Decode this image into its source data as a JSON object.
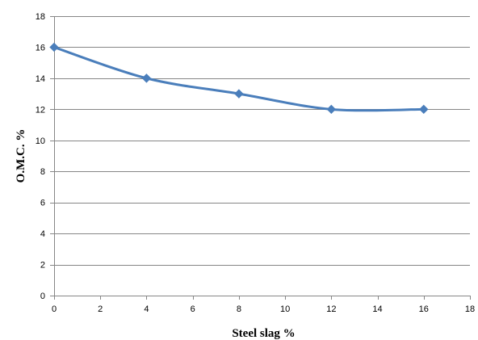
{
  "chart_data": {
    "type": "line",
    "xlabel": "Steel slag %",
    "ylabel": "O.M.C. %",
    "xlim": [
      0,
      18
    ],
    "ylim": [
      0,
      18
    ],
    "x_ticks": [
      0,
      2,
      4,
      6,
      8,
      10,
      12,
      14,
      16,
      18
    ],
    "y_ticks": [
      0,
      2,
      4,
      6,
      8,
      10,
      12,
      14,
      16,
      18
    ],
    "grid": "horizontal",
    "smooth": true,
    "series": [
      {
        "x": [
          0,
          4,
          8,
          12,
          16
        ],
        "y": [
          16,
          14,
          13,
          12,
          12
        ],
        "color": "#4a7ebb",
        "marker": "diamond"
      }
    ]
  }
}
